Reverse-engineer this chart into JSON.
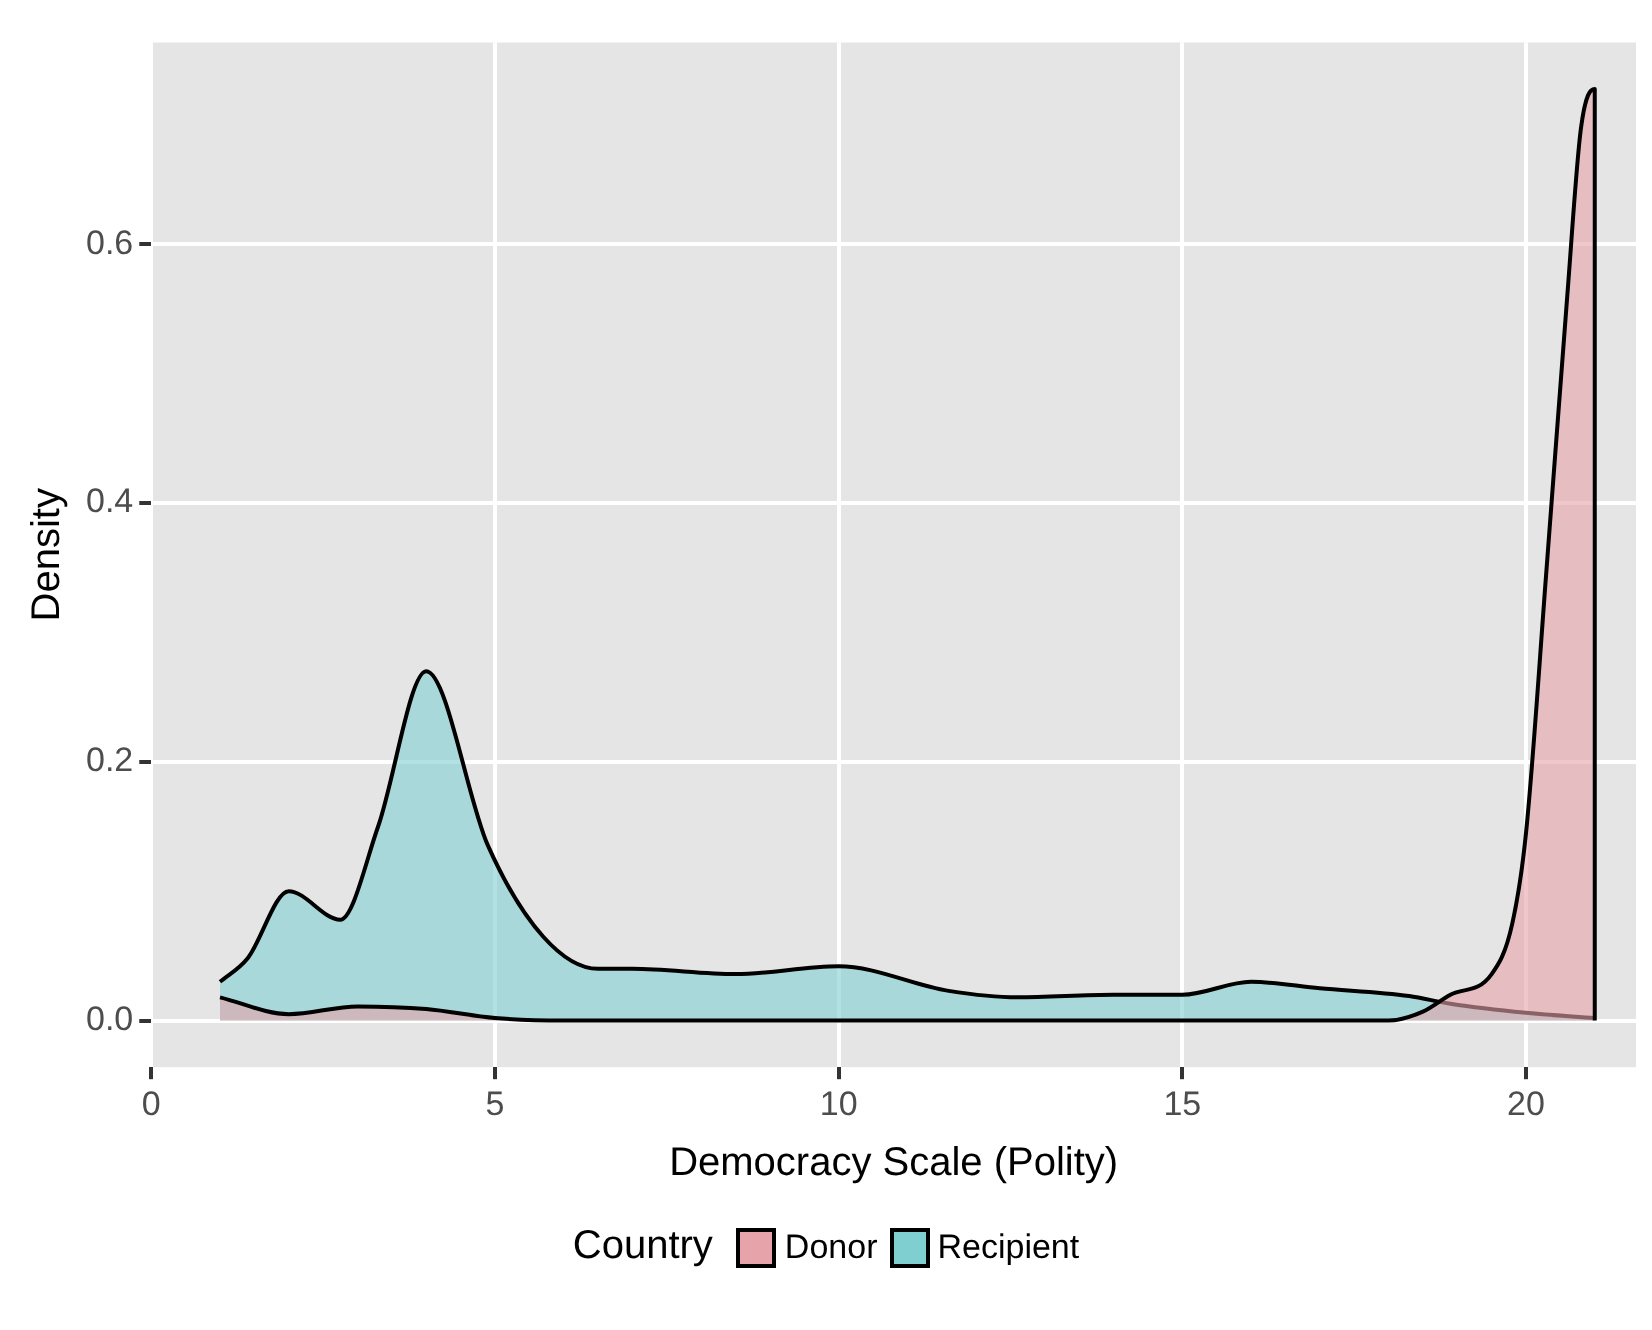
{
  "chart_data": {
    "type": "area",
    "xlabel": "Democracy Scale (Polity)",
    "ylabel": "Density",
    "legend_title": "Country",
    "xlim": [
      0,
      21.6
    ],
    "xticks": [
      0,
      5,
      10,
      15,
      20
    ],
    "ylim": [
      -0.036,
      0.756
    ],
    "yticks": [
      {
        "value": 0,
        "label": "0.0"
      },
      {
        "value": 0.2,
        "label": "0.2"
      },
      {
        "value": 0.4,
        "label": "0.4"
      },
      {
        "value": 0.6,
        "label": "0.6"
      }
    ],
    "grid": true,
    "legend": "bottom",
    "series": [
      {
        "name": "Donor",
        "color": "#e6a3aa",
        "x": [
          1,
          2,
          3,
          4,
          5,
          6,
          10,
          15,
          18,
          18.5,
          18.9,
          19.5,
          19.8,
          20,
          20.3,
          20.6,
          20.8,
          21,
          21
        ],
        "values": [
          0.018,
          0.005,
          0.011,
          0.009,
          0.002,
          0,
          0,
          0,
          0,
          0.007,
          0.02,
          0.036,
          0.075,
          0.145,
          0.35,
          0.56,
          0.69,
          0.72,
          0
        ]
      },
      {
        "name": "Recipient",
        "color": "#7fcfd0",
        "x": [
          1,
          1.4,
          2,
          2.75,
          3.3,
          4,
          4.9,
          5.7,
          6.5,
          7,
          8.5,
          10,
          11.6,
          12.6,
          14,
          15,
          16,
          17,
          18.3,
          18.9,
          20,
          21
        ],
        "values": [
          0.03,
          0.048,
          0.1,
          0.078,
          0.15,
          0.27,
          0.135,
          0.065,
          0.04,
          0.04,
          0.036,
          0.042,
          0.023,
          0.018,
          0.02,
          0.02,
          0.03,
          0.025,
          0.019,
          0.013,
          0.006,
          0.002
        ]
      }
    ]
  }
}
